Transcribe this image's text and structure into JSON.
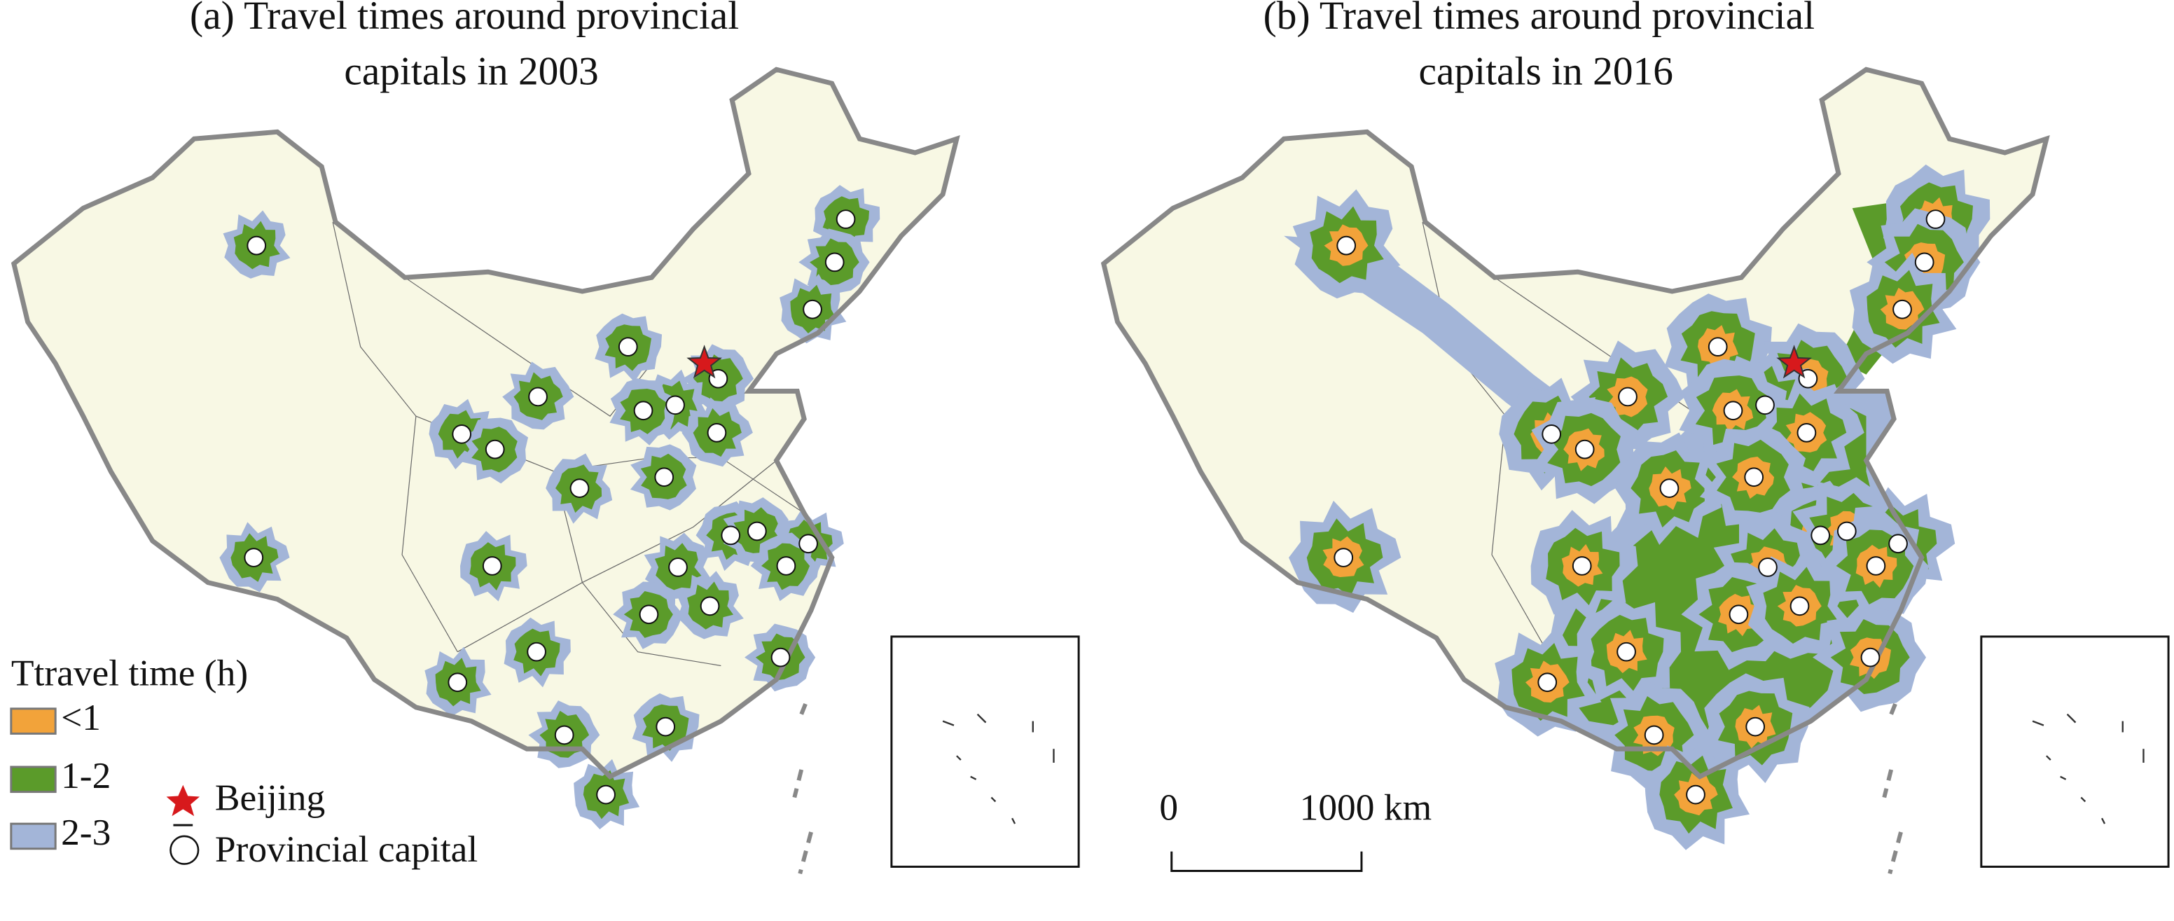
{
  "panels": [
    {
      "title_lines": [
        "(a) Travel times around provincial",
        "capitals in 2003"
      ]
    },
    {
      "title_lines": [
        "(b) Travel times around provincial",
        "capitals in 2016"
      ]
    }
  ],
  "legend": {
    "title": "Ttravel time (h)",
    "items": [
      {
        "label": "<1",
        "color": "#f2a33a"
      },
      {
        "label": "1-2",
        "color": "#5b9b2a"
      },
      {
        "label": "2-3",
        "color": "#a3b5d8"
      }
    ],
    "beijing": "Beijing",
    "capital": "Provincial capital"
  },
  "scale_bar": {
    "start": "0",
    "end": "1000 km"
  }
}
